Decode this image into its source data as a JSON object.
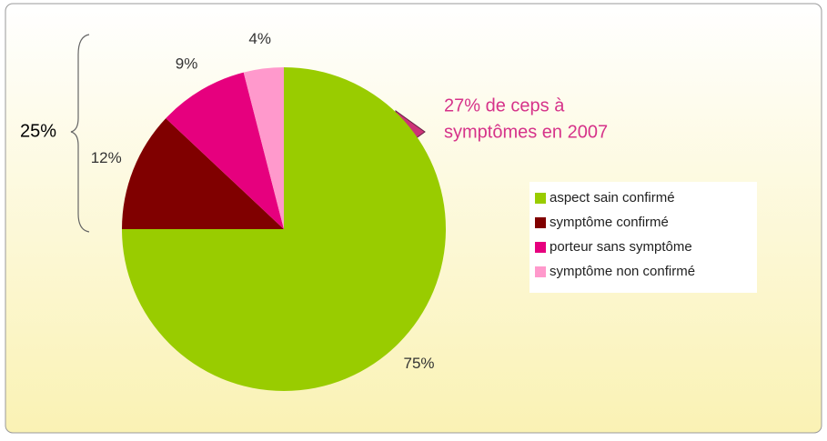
{
  "chart_data": {
    "type": "pie",
    "categories": [
      "aspect sain confirmé",
      "symptôme confirmé",
      "porteur sans symptôme",
      "symptôme non confirmé"
    ],
    "values": [
      75,
      12,
      9,
      4
    ],
    "value_labels": [
      "75%",
      "12%",
      "9%",
      "4%"
    ],
    "colors": [
      "#99cc00",
      "#800000",
      "#e6007e",
      "#ff99cc"
    ],
    "annotations": {
      "brace": "25%",
      "arrow": [
        "27% de ceps à",
        "symptômes en 2007"
      ]
    }
  }
}
